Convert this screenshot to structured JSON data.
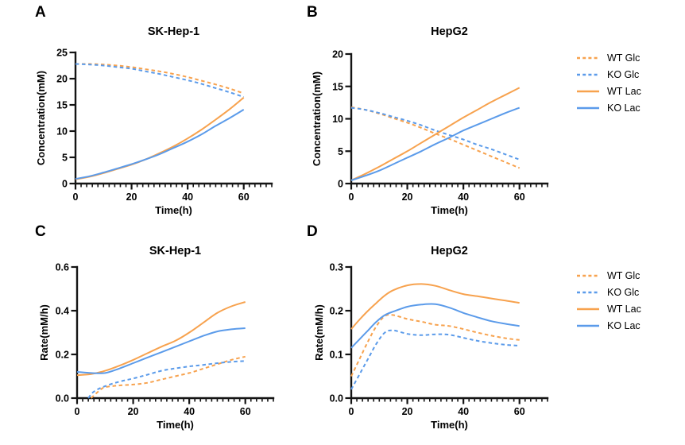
{
  "style": {
    "background": "#ffffff",
    "axis_color": "#141414",
    "wt_color": "#F7A24E",
    "ko_color": "#5B9BEA"
  },
  "legend": {
    "entries": [
      {
        "label": "WT Glc",
        "color": "#F7A24E",
        "style": "dashed"
      },
      {
        "label": "KO Glc",
        "color": "#5B9BEA",
        "style": "dashed"
      },
      {
        "label": "WT Lac",
        "color": "#F7A24E",
        "style": "solid"
      },
      {
        "label": "KO Lac",
        "color": "#5B9BEA",
        "style": "solid"
      }
    ]
  },
  "chart_data": [
    {
      "type": "line",
      "panel": "A",
      "title": "SK-Hep-1",
      "xlabel": "Time(h)",
      "ylabel": "Concentration(mM)",
      "xlim": [
        0,
        70
      ],
      "ylim": [
        0,
        25
      ],
      "xticks": {
        "major": [
          0,
          20,
          40,
          60
        ],
        "minor_step": 2
      },
      "yticks": {
        "values": [
          0,
          5,
          10,
          15,
          20,
          25
        ],
        "labels": [
          "0",
          "5",
          "10",
          "15",
          "20",
          "25"
        ]
      },
      "grid": false,
      "legend_position": "shared-right-outside",
      "series": [
        {
          "name": "WT Glc",
          "color": "#F7A24E",
          "dash": true,
          "x": [
            0,
            5,
            10,
            15,
            20,
            25,
            30,
            35,
            40,
            45,
            50,
            55,
            60
          ],
          "y": [
            22.8,
            22.8,
            22.7,
            22.5,
            22.2,
            21.8,
            21.4,
            20.9,
            20.3,
            19.6,
            18.9,
            18.1,
            17.2
          ]
        },
        {
          "name": "KO Glc",
          "color": "#5B9BEA",
          "dash": true,
          "x": [
            0,
            5,
            10,
            15,
            20,
            25,
            30,
            35,
            40,
            45,
            50,
            55,
            60
          ],
          "y": [
            22.8,
            22.7,
            22.5,
            22.2,
            21.9,
            21.4,
            20.9,
            20.3,
            19.7,
            19.0,
            18.2,
            17.4,
            16.5
          ]
        },
        {
          "name": "WT Lac",
          "color": "#F7A24E",
          "dash": false,
          "x": [
            0,
            5,
            10,
            15,
            20,
            25,
            30,
            35,
            40,
            45,
            50,
            55,
            60
          ],
          "y": [
            0.8,
            1.3,
            2.0,
            2.8,
            3.6,
            4.6,
            5.8,
            7.1,
            8.6,
            10.3,
            12.2,
            14.2,
            16.4
          ]
        },
        {
          "name": "KO Lac",
          "color": "#5B9BEA",
          "dash": false,
          "x": [
            0,
            5,
            10,
            15,
            20,
            25,
            30,
            35,
            40,
            45,
            50,
            55,
            60
          ],
          "y": [
            0.9,
            1.4,
            2.1,
            2.9,
            3.7,
            4.6,
            5.6,
            6.8,
            8.0,
            9.4,
            11.0,
            12.5,
            14.1
          ]
        }
      ]
    },
    {
      "type": "line",
      "panel": "B",
      "title": "HepG2",
      "xlabel": "Time(h)",
      "ylabel": "Concentration(mM)",
      "xlim": [
        0,
        70
      ],
      "ylim": [
        0,
        20
      ],
      "xticks": {
        "major": [
          0,
          20,
          40,
          60
        ],
        "minor_step": 2
      },
      "yticks": {
        "values": [
          0,
          5,
          10,
          15,
          20
        ],
        "labels": [
          "0",
          "5",
          "10",
          "15",
          "20"
        ]
      },
      "grid": false,
      "legend_position": "shared-right-outside",
      "series": [
        {
          "name": "WT Glc",
          "color": "#F7A24E",
          "dash": true,
          "x": [
            0,
            5,
            10,
            15,
            20,
            25,
            30,
            35,
            40,
            45,
            50,
            55,
            60
          ],
          "y": [
            11.8,
            11.4,
            10.8,
            10.1,
            9.4,
            8.6,
            7.7,
            6.9,
            6.0,
            5.1,
            4.2,
            3.3,
            2.4
          ]
        },
        {
          "name": "KO Glc",
          "color": "#5B9BEA",
          "dash": true,
          "x": [
            0,
            5,
            10,
            15,
            20,
            25,
            30,
            35,
            40,
            45,
            50,
            55,
            60
          ],
          "y": [
            11.7,
            11.4,
            10.9,
            10.3,
            9.7,
            9.0,
            8.2,
            7.5,
            6.8,
            6.0,
            5.3,
            4.5,
            3.7
          ]
        },
        {
          "name": "WT Lac",
          "color": "#F7A24E",
          "dash": false,
          "x": [
            0,
            5,
            10,
            15,
            20,
            25,
            30,
            35,
            40,
            45,
            50,
            55,
            60
          ],
          "y": [
            0.5,
            1.5,
            2.6,
            3.8,
            5.0,
            6.3,
            7.6,
            8.9,
            10.2,
            11.4,
            12.6,
            13.7,
            14.8
          ]
        },
        {
          "name": "KO Lac",
          "color": "#5B9BEA",
          "dash": false,
          "x": [
            0,
            5,
            10,
            15,
            20,
            25,
            30,
            35,
            40,
            45,
            50,
            55,
            60
          ],
          "y": [
            0.5,
            1.2,
            2.0,
            3.0,
            4.0,
            5.0,
            6.1,
            7.1,
            8.2,
            9.1,
            10.0,
            10.9,
            11.7
          ]
        }
      ]
    },
    {
      "type": "line",
      "panel": "C",
      "title": "SK-Hep-1",
      "xlabel": "Time(h)",
      "ylabel": "Rate(mM/h)",
      "xlim": [
        0,
        70
      ],
      "ylim": [
        0,
        0.6
      ],
      "xticks": {
        "major": [
          0,
          20,
          40,
          60
        ],
        "minor_step": 2
      },
      "yticks": {
        "values": [
          0,
          0.2,
          0.4,
          0.6
        ],
        "labels": [
          "0.0",
          "0.2",
          "0.4",
          "0.6"
        ]
      },
      "grid": false,
      "legend_position": "shared-right-outside",
      "series": [
        {
          "name": "WT Glc",
          "color": "#F7A24E",
          "dash": true,
          "x": [
            5,
            8,
            10,
            15,
            20,
            25,
            30,
            35,
            40,
            45,
            50,
            55,
            60
          ],
          "y": [
            0,
            0.035,
            0.05,
            0.058,
            0.062,
            0.07,
            0.085,
            0.1,
            0.115,
            0.135,
            0.155,
            0.175,
            0.19
          ]
        },
        {
          "name": "KO Glc",
          "color": "#5B9BEA",
          "dash": true,
          "x": [
            4,
            6,
            10,
            15,
            20,
            25,
            30,
            35,
            40,
            45,
            50,
            55,
            60
          ],
          "y": [
            0,
            0.03,
            0.055,
            0.075,
            0.09,
            0.107,
            0.125,
            0.136,
            0.145,
            0.152,
            0.16,
            0.166,
            0.17
          ]
        },
        {
          "name": "WT Lac",
          "color": "#F7A24E",
          "dash": false,
          "x": [
            0,
            5,
            10,
            15,
            20,
            25,
            30,
            35,
            40,
            45,
            50,
            55,
            60
          ],
          "y": [
            0.105,
            0.11,
            0.125,
            0.148,
            0.175,
            0.205,
            0.235,
            0.262,
            0.3,
            0.345,
            0.39,
            0.42,
            0.44
          ]
        },
        {
          "name": "KO Lac",
          "color": "#5B9BEA",
          "dash": false,
          "x": [
            0,
            5,
            10,
            15,
            20,
            25,
            30,
            35,
            40,
            45,
            50,
            55,
            60
          ],
          "y": [
            0.12,
            0.115,
            0.115,
            0.135,
            0.16,
            0.185,
            0.21,
            0.235,
            0.26,
            0.285,
            0.305,
            0.315,
            0.32
          ]
        }
      ]
    },
    {
      "type": "line",
      "panel": "D",
      "title": "HepG2",
      "xlabel": "Time(h)",
      "ylabel": "Rate(mM/h)",
      "xlim": [
        0,
        70
      ],
      "ylim": [
        0,
        0.3
      ],
      "xticks": {
        "major": [
          0,
          20,
          40,
          60
        ],
        "minor_step": 2
      },
      "yticks": {
        "values": [
          0,
          0.1,
          0.2,
          0.3
        ],
        "labels": [
          "0.0",
          "0.1",
          "0.2",
          "0.3"
        ]
      },
      "grid": false,
      "legend_position": "shared-right-outside",
      "series": [
        {
          "name": "WT Glc",
          "color": "#F7A24E",
          "dash": true,
          "x": [
            0,
            3,
            6,
            9,
            12,
            15,
            20,
            25,
            30,
            35,
            40,
            45,
            50,
            55,
            60
          ],
          "y": [
            0.05,
            0.09,
            0.13,
            0.165,
            0.188,
            0.19,
            0.181,
            0.175,
            0.168,
            0.165,
            0.158,
            0.15,
            0.143,
            0.137,
            0.133
          ]
        },
        {
          "name": "KO Glc",
          "color": "#5B9BEA",
          "dash": true,
          "x": [
            0,
            3,
            6,
            9,
            12,
            15,
            20,
            25,
            30,
            35,
            40,
            45,
            50,
            55,
            60
          ],
          "y": [
            0.02,
            0.055,
            0.09,
            0.125,
            0.15,
            0.155,
            0.147,
            0.144,
            0.146,
            0.145,
            0.138,
            0.131,
            0.126,
            0.122,
            0.12
          ]
        },
        {
          "name": "WT Lac",
          "color": "#F7A24E",
          "dash": false,
          "x": [
            0,
            3,
            6,
            9,
            12,
            15,
            20,
            25,
            30,
            35,
            40,
            45,
            50,
            55,
            60
          ],
          "y": [
            0.158,
            0.18,
            0.2,
            0.218,
            0.235,
            0.247,
            0.258,
            0.261,
            0.257,
            0.247,
            0.238,
            0.233,
            0.228,
            0.223,
            0.218
          ]
        },
        {
          "name": "KO Lac",
          "color": "#5B9BEA",
          "dash": false,
          "x": [
            0,
            3,
            6,
            9,
            12,
            15,
            20,
            25,
            30,
            35,
            40,
            45,
            50,
            55,
            60
          ],
          "y": [
            0.115,
            0.135,
            0.155,
            0.175,
            0.19,
            0.198,
            0.209,
            0.214,
            0.215,
            0.207,
            0.195,
            0.185,
            0.176,
            0.17,
            0.165
          ]
        }
      ]
    }
  ]
}
